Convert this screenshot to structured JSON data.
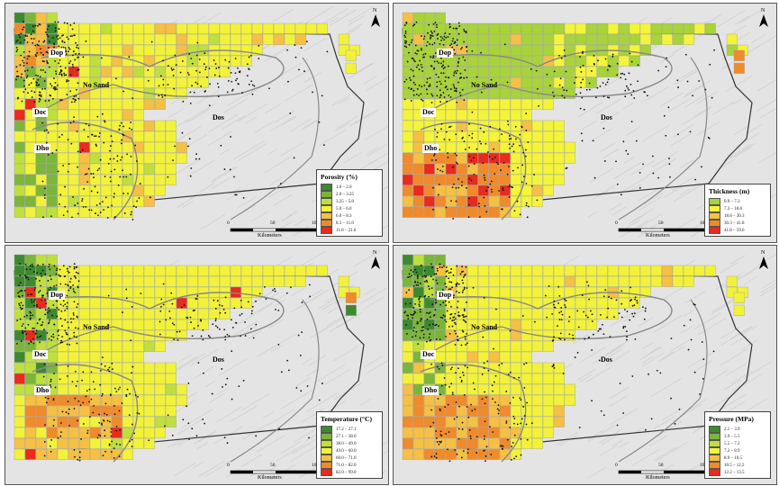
{
  "panels": [
    {
      "id": "porosity",
      "legend_title": "Porosity (%)",
      "classes": [
        "1.0 – 2.0",
        "2.0 – 3.25",
        "3.25 – 5.0",
        "5.0 – 6.0",
        "6.0 – 8.3",
        "8.3 – 11.0",
        "11.0 – 21.0"
      ],
      "colors": [
        "#3d8a2e",
        "#7bb53a",
        "#bfe03c",
        "#f2f23a",
        "#f5c043",
        "#f08a2a",
        "#e82a1f"
      ]
    },
    {
      "id": "thickness",
      "legend_title": "Thickness (m)",
      "classes": [
        "0.9 – 7.3",
        "7.3 – 18.8",
        "18.8 – 30.3",
        "30.3 – 41.8",
        "41.8 – 59.6"
      ],
      "colors": [
        "#a8d33a",
        "#f4f43a",
        "#f5c043",
        "#f08a2a",
        "#e82a1f"
      ]
    },
    {
      "id": "temperature",
      "legend_title": "Temperature (°C)",
      "classes": [
        "17.2 – 27.1",
        "27.1 – 38.0",
        "38.0 – 49.0",
        "49.0 – 60.0",
        "60.0 – 71.0",
        "71.0 – 82.0",
        "82.0 – 99.0"
      ],
      "colors": [
        "#3d8a2e",
        "#7bb53a",
        "#bfe03c",
        "#f2f23a",
        "#f5c043",
        "#f08a2a",
        "#e82a1f"
      ]
    },
    {
      "id": "pressure",
      "legend_title": "Pressure (MPa)",
      "classes": [
        "2.1 – 3.9",
        "3.9 – 5.5",
        "5.5 – 7.2",
        "7.2 – 8.9",
        "8.9 – 10.5",
        "10.5 – 12.2",
        "12.2 – 13.5"
      ],
      "colors": [
        "#3d8a2e",
        "#7bb53a",
        "#bfe03c",
        "#f2f23a",
        "#f5c043",
        "#f08a2a",
        "#e82a1f"
      ]
    }
  ],
  "zones": {
    "dop": "Dop",
    "no_sand": "No Sand",
    "doc": "Doc",
    "dos": "Dos",
    "dho": "Dho"
  },
  "scale": {
    "tick_0": "0",
    "tick_50": "50",
    "tick_100": "100",
    "units": "Kilometers"
  },
  "north_label": "N",
  "colors": {
    "background": "#e4e4e4",
    "outline": "#333333",
    "wells": "#111111",
    "terrain": "#d0d0d0"
  }
}
